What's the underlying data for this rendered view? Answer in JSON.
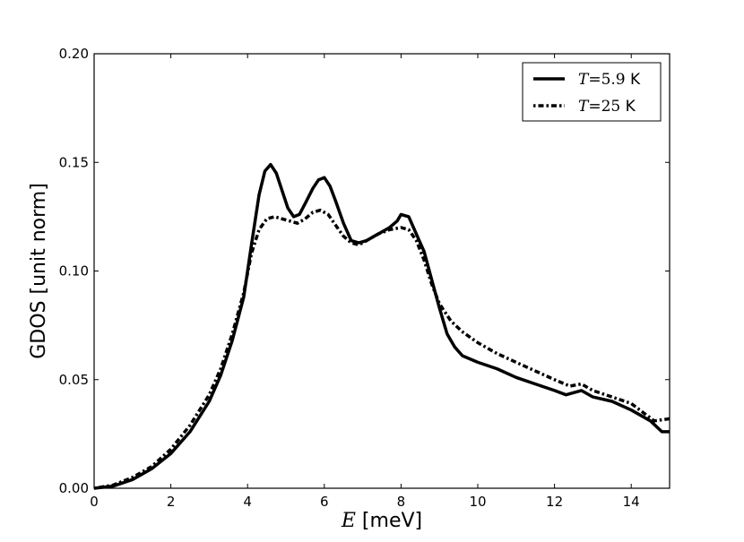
{
  "chart_data": {
    "type": "line",
    "title": "",
    "xlabel": {
      "var": "E",
      "unit": " [meV]"
    },
    "ylabel": "GDOS [unit norm]",
    "xlim": [
      0,
      15
    ],
    "ylim": [
      0,
      0.2
    ],
    "xticks": [
      0,
      2,
      4,
      6,
      8,
      10,
      12,
      14
    ],
    "xtick_labels": [
      "0",
      "2",
      "4",
      "6",
      "8",
      "10",
      "12",
      "14"
    ],
    "yticks": [
      0,
      0.05,
      0.1,
      0.15,
      0.2
    ],
    "ytick_labels": [
      "0.00",
      "0.05",
      "0.10",
      "0.15",
      "0.20"
    ],
    "grid": false,
    "legend_position": "top-right",
    "series": [
      {
        "name": "T=5.9 K",
        "legend": {
          "var": "T",
          "value": "=5.9",
          "unit": " K"
        },
        "style": "solid",
        "points": [
          [
            0,
            0
          ],
          [
            0.5,
            0.001
          ],
          [
            1,
            0.004
          ],
          [
            1.5,
            0.009
          ],
          [
            2,
            0.016
          ],
          [
            2.5,
            0.026
          ],
          [
            3,
            0.04
          ],
          [
            3.3,
            0.052
          ],
          [
            3.6,
            0.068
          ],
          [
            3.9,
            0.088
          ],
          [
            4.1,
            0.112
          ],
          [
            4.3,
            0.135
          ],
          [
            4.45,
            0.146
          ],
          [
            4.6,
            0.149
          ],
          [
            4.75,
            0.145
          ],
          [
            4.9,
            0.137
          ],
          [
            5.05,
            0.129
          ],
          [
            5.2,
            0.125
          ],
          [
            5.35,
            0.126
          ],
          [
            5.5,
            0.131
          ],
          [
            5.7,
            0.138
          ],
          [
            5.85,
            0.142
          ],
          [
            6.0,
            0.143
          ],
          [
            6.15,
            0.139
          ],
          [
            6.3,
            0.132
          ],
          [
            6.5,
            0.122
          ],
          [
            6.7,
            0.114
          ],
          [
            6.9,
            0.113
          ],
          [
            7.1,
            0.114
          ],
          [
            7.3,
            0.116
          ],
          [
            7.5,
            0.118
          ],
          [
            7.7,
            0.12
          ],
          [
            7.9,
            0.123
          ],
          [
            8.0,
            0.126
          ],
          [
            8.2,
            0.125
          ],
          [
            8.4,
            0.117
          ],
          [
            8.6,
            0.109
          ],
          [
            8.8,
            0.096
          ],
          [
            9.0,
            0.083
          ],
          [
            9.2,
            0.071
          ],
          [
            9.4,
            0.065
          ],
          [
            9.6,
            0.061
          ],
          [
            10,
            0.058
          ],
          [
            10.5,
            0.055
          ],
          [
            11,
            0.051
          ],
          [
            11.5,
            0.048
          ],
          [
            12,
            0.045
          ],
          [
            12.3,
            0.043
          ],
          [
            12.7,
            0.045
          ],
          [
            13,
            0.042
          ],
          [
            13.5,
            0.04
          ],
          [
            14,
            0.036
          ],
          [
            14.5,
            0.031
          ],
          [
            14.8,
            0.026
          ],
          [
            15,
            0.026
          ]
        ]
      },
      {
        "name": "T=25 K",
        "legend": {
          "var": "T",
          "value": "=25",
          "unit": " K"
        },
        "style": "dashdot",
        "points": [
          [
            0,
            0
          ],
          [
            0.5,
            0.0015
          ],
          [
            1,
            0.005
          ],
          [
            1.5,
            0.01
          ],
          [
            2,
            0.018
          ],
          [
            2.5,
            0.029
          ],
          [
            3,
            0.043
          ],
          [
            3.3,
            0.055
          ],
          [
            3.6,
            0.071
          ],
          [
            3.9,
            0.09
          ],
          [
            4.1,
            0.108
          ],
          [
            4.3,
            0.119
          ],
          [
            4.5,
            0.124
          ],
          [
            4.7,
            0.125
          ],
          [
            4.9,
            0.124
          ],
          [
            5.1,
            0.123
          ],
          [
            5.3,
            0.122
          ],
          [
            5.5,
            0.124
          ],
          [
            5.7,
            0.127
          ],
          [
            5.9,
            0.128
          ],
          [
            6.1,
            0.126
          ],
          [
            6.3,
            0.121
          ],
          [
            6.5,
            0.116
          ],
          [
            6.7,
            0.113
          ],
          [
            6.9,
            0.112
          ],
          [
            7.1,
            0.114
          ],
          [
            7.4,
            0.117
          ],
          [
            7.7,
            0.119
          ],
          [
            8.0,
            0.12
          ],
          [
            8.2,
            0.119
          ],
          [
            8.4,
            0.114
          ],
          [
            8.6,
            0.105
          ],
          [
            8.8,
            0.094
          ],
          [
            9.0,
            0.085
          ],
          [
            9.3,
            0.077
          ],
          [
            9.6,
            0.072
          ],
          [
            10,
            0.067
          ],
          [
            10.5,
            0.062
          ],
          [
            11,
            0.058
          ],
          [
            11.5,
            0.054
          ],
          [
            12,
            0.05
          ],
          [
            12.4,
            0.047
          ],
          [
            12.7,
            0.048
          ],
          [
            13,
            0.045
          ],
          [
            13.5,
            0.042
          ],
          [
            14,
            0.039
          ],
          [
            14.3,
            0.035
          ],
          [
            14.6,
            0.031
          ],
          [
            15,
            0.032
          ]
        ]
      }
    ]
  }
}
